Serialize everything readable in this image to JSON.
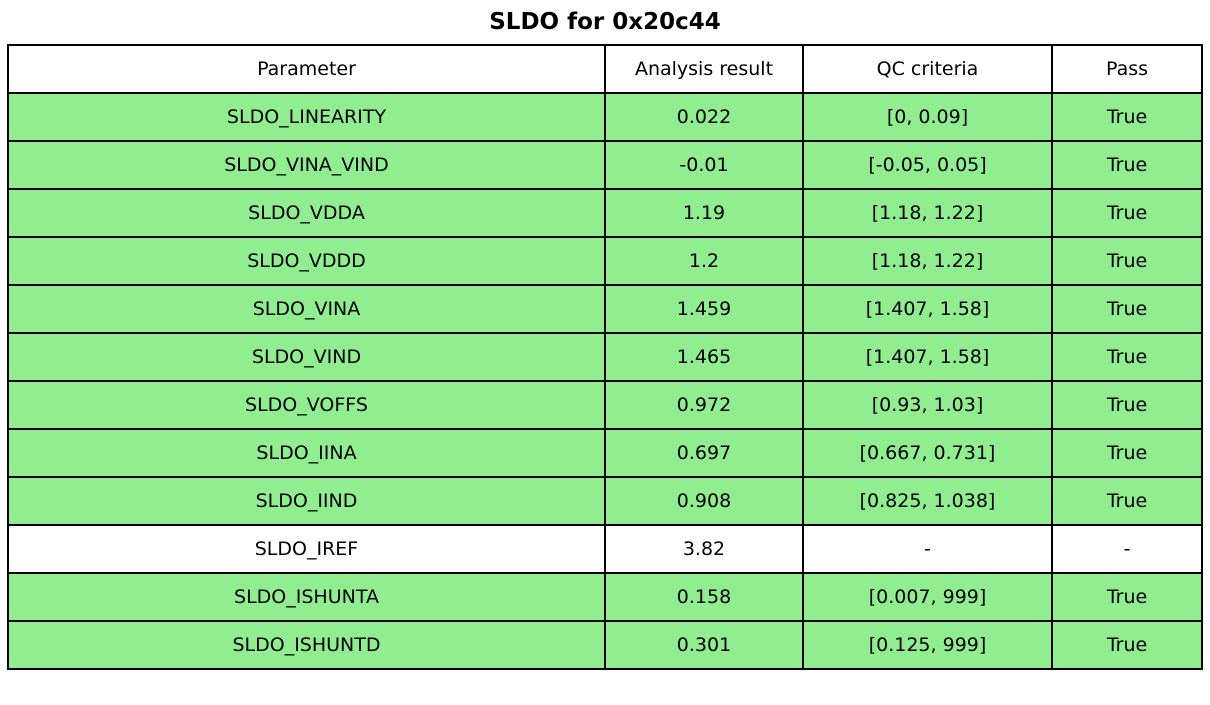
{
  "title": "SLDO for 0x20c44",
  "table": {
    "headers": {
      "parameter": "Parameter",
      "result": "Analysis result",
      "criteria": "QC criteria",
      "pass": "Pass"
    },
    "colors": {
      "pass_row": "#90EE90",
      "neutral_row": "#FFFFFF",
      "border": "#000000"
    },
    "rows": [
      {
        "parameter": "SLDO_LINEARITY",
        "result": "0.022",
        "criteria": "[0, 0.09]",
        "pass": "True",
        "highlight": true
      },
      {
        "parameter": "SLDO_VINA_VIND",
        "result": "-0.01",
        "criteria": "[-0.05, 0.05]",
        "pass": "True",
        "highlight": true
      },
      {
        "parameter": "SLDO_VDDA",
        "result": "1.19",
        "criteria": "[1.18, 1.22]",
        "pass": "True",
        "highlight": true
      },
      {
        "parameter": "SLDO_VDDD",
        "result": "1.2",
        "criteria": "[1.18, 1.22]",
        "pass": "True",
        "highlight": true
      },
      {
        "parameter": "SLDO_VINA",
        "result": "1.459",
        "criteria": "[1.407, 1.58]",
        "pass": "True",
        "highlight": true
      },
      {
        "parameter": "SLDO_VIND",
        "result": "1.465",
        "criteria": "[1.407, 1.58]",
        "pass": "True",
        "highlight": true
      },
      {
        "parameter": "SLDO_VOFFS",
        "result": "0.972",
        "criteria": "[0.93, 1.03]",
        "pass": "True",
        "highlight": true
      },
      {
        "parameter": "SLDO_IINA",
        "result": "0.697",
        "criteria": "[0.667, 0.731]",
        "pass": "True",
        "highlight": true
      },
      {
        "parameter": "SLDO_IIND",
        "result": "0.908",
        "criteria": "[0.825, 1.038]",
        "pass": "True",
        "highlight": true
      },
      {
        "parameter": "SLDO_IREF",
        "result": "3.82",
        "criteria": "-",
        "pass": "-",
        "highlight": false
      },
      {
        "parameter": "SLDO_ISHUNTA",
        "result": "0.158",
        "criteria": "[0.007, 999]",
        "pass": "True",
        "highlight": true
      },
      {
        "parameter": "SLDO_ISHUNTD",
        "result": "0.301",
        "criteria": "[0.125, 999]",
        "pass": "True",
        "highlight": true
      }
    ]
  }
}
